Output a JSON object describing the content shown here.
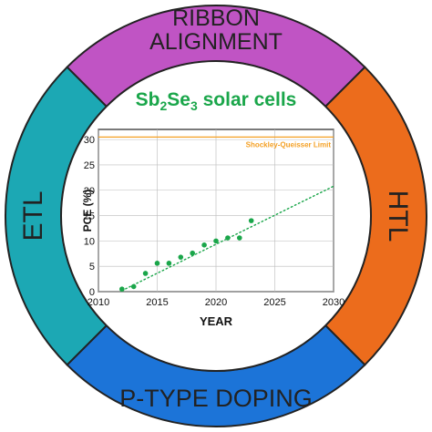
{
  "diagram": {
    "segments": [
      {
        "id": "top",
        "label_lines": [
          "RIBBON",
          "ALIGNMENT"
        ],
        "color": "#c054c4"
      },
      {
        "id": "right",
        "label_lines": [
          "HTL"
        ],
        "color": "#ec6c1c"
      },
      {
        "id": "bottom",
        "label_lines": [
          "P-TYPE DOPING"
        ],
        "color": "#1c74d8"
      },
      {
        "id": "left",
        "label_lines": [
          "ETL"
        ],
        "color": "#1ca8b4"
      }
    ],
    "center_title": {
      "prefix": "Sb",
      "sub1": "2",
      "mid": "Se",
      "sub2": "3",
      "suffix": " solar cells",
      "color": "#1aa64a"
    }
  },
  "chart_data": {
    "type": "scatter",
    "xlabel": "YEAR",
    "ylabel": "PCE (%)",
    "xlim": [
      2010,
      2030
    ],
    "ylim": [
      0,
      32
    ],
    "xticks": [
      2010,
      2015,
      2020,
      2025,
      2030
    ],
    "yticks": [
      0,
      5,
      10,
      15,
      20,
      25,
      30
    ],
    "grid": true,
    "points": {
      "x": [
        2012,
        2013,
        2014,
        2015,
        2016,
        2017,
        2018,
        2019,
        2020,
        2021,
        2022,
        2023
      ],
      "y": [
        0.5,
        1.0,
        3.6,
        5.6,
        5.6,
        6.8,
        7.6,
        9.2,
        10.0,
        10.6,
        10.6,
        14.0
      ]
    },
    "trendline": {
      "x": [
        2012,
        2030
      ],
      "y": [
        0.2,
        20.8
      ],
      "style": "dotted"
    },
    "reference_line": {
      "y": 30.5,
      "label": "Shockley-Queisser Limit",
      "color": "#f4a024"
    },
    "point_color": "#1aa64a"
  }
}
